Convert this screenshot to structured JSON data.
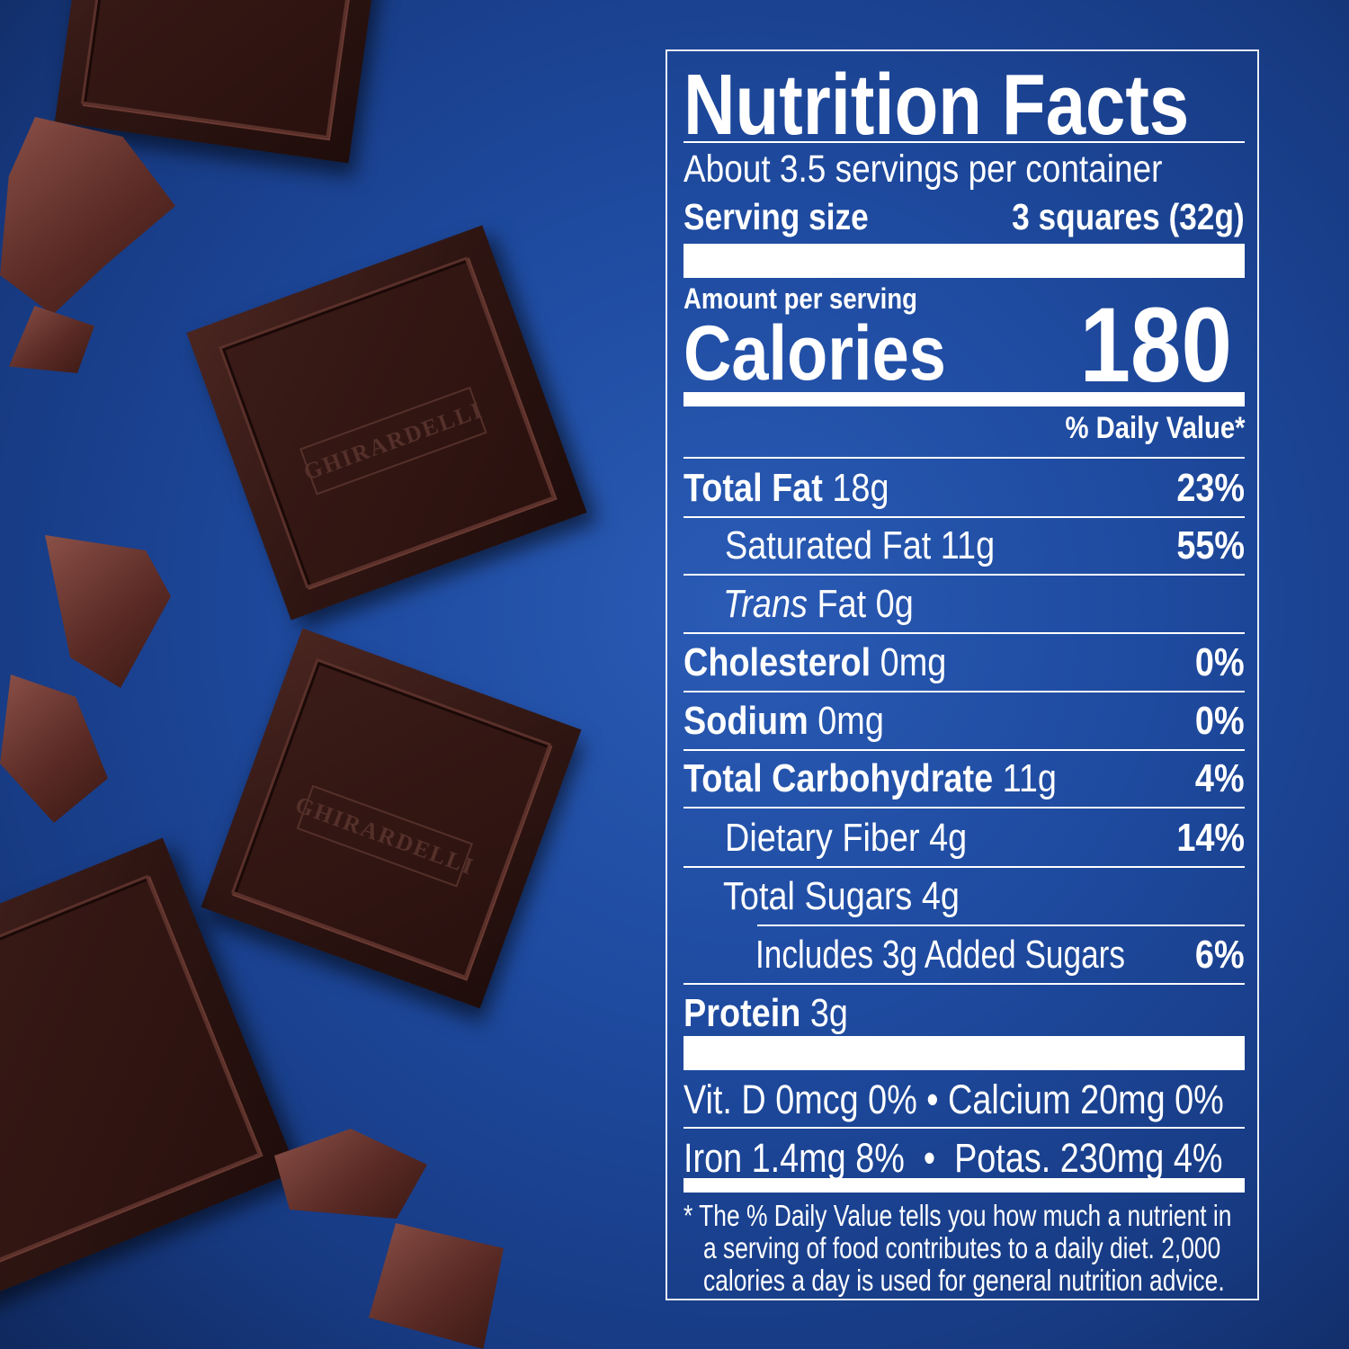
{
  "logo_text": "GHIRARDELLI",
  "colors": {
    "background": "#1e4a9f",
    "text": "#ffffff",
    "chocolate": "#2e1512"
  },
  "label": {
    "title": "Nutrition Facts",
    "servings_per_container": "About 3.5 servings per container",
    "serving_size_label": "Serving size",
    "serving_size_value": "3 squares (32g)",
    "amount_per_serving": "Amount per serving",
    "calories_label": "Calories",
    "calories_value": "180",
    "daily_value_header": "% Daily Value*",
    "nutrients": [
      {
        "name": "Total Fat",
        "amount": "18g",
        "dv": "23%"
      },
      {
        "name": "Saturated Fat",
        "amount": "11g",
        "dv": "55%"
      },
      {
        "name": "Trans",
        "name_suffix": "Fat",
        "amount": "0g",
        "dv": ""
      },
      {
        "name": "Cholesterol",
        "amount": "0mg",
        "dv": "0%"
      },
      {
        "name": "Sodium",
        "amount": "0mg",
        "dv": "0%"
      },
      {
        "name": "Total Carbohydrate",
        "amount": "11g",
        "dv": "4%"
      },
      {
        "name": "Dietary Fiber",
        "amount": "4g",
        "dv": "14%"
      },
      {
        "name": "Total Sugars",
        "amount": "4g",
        "dv": ""
      },
      {
        "name": "Includes 3g Added Sugars",
        "amount": "",
        "dv": "6%"
      },
      {
        "name": "Protein",
        "amount": "3g",
        "dv": ""
      }
    ],
    "vitamins_line1": "Vit. D 0mcg 0% • Calcium 20mg 0%",
    "vitamins_line2": "Iron 1.4mg 8%  •  Potas. 230mg 4%",
    "footnote": [
      "* The % Daily Value tells you how much a nutrient in",
      "a serving of food contributes to a daily diet. 2,000",
      "calories a day is used for general nutrition advice."
    ]
  }
}
